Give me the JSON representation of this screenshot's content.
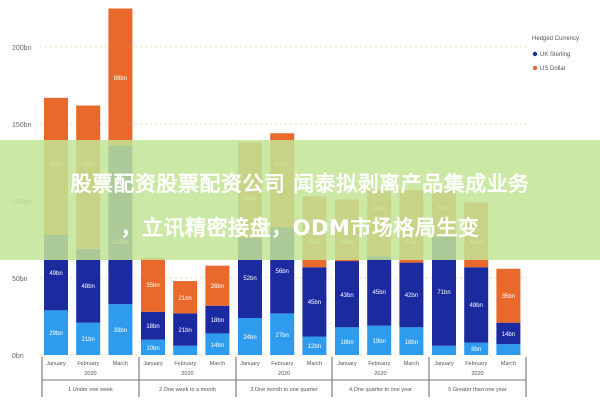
{
  "chart_data": {
    "type": "bar",
    "stacked": true,
    "title": "",
    "xlabel": "",
    "ylabel": "",
    "ylim": [
      0,
      225
    ],
    "y_ticks": [
      "0bn",
      "50bn",
      "100bn",
      "150bn",
      "200bn"
    ],
    "y_tick_values": [
      0,
      50,
      100,
      150,
      200
    ],
    "grid": true,
    "categories": [
      "January",
      "February",
      "March",
      "January",
      "February",
      "March",
      "January",
      "February",
      "March",
      "January",
      "February",
      "March",
      "January",
      "February",
      "March"
    ],
    "year_label": "2020",
    "groups": [
      "1.Under one week",
      "2.One week to a month",
      "3.One month to one quarter",
      "4.One quarter to one year",
      "5.Greater than one year"
    ],
    "legend": {
      "title": "Hedged Currency",
      "position": "right"
    },
    "series": [
      {
        "name": "",
        "color": "#2f9bef",
        "values": [
          29,
          21,
          33,
          10,
          6,
          14,
          24,
          27,
          12,
          18,
          19,
          18,
          6,
          8,
          7
        ]
      },
      {
        "name": "UK Sterling",
        "color": "#1b2a9e",
        "values": [
          49,
          48,
          103,
          18,
          21,
          18,
          52,
          56,
          45,
          43,
          45,
          42,
          71,
          49,
          14
        ]
      },
      {
        "name": "US Dollar",
        "color": "#e8692b",
        "values": [
          89,
          93,
          89,
          35,
          21,
          26,
          62,
          61,
          46,
          40,
          43,
          47,
          30,
          42,
          35
        ]
      }
    ]
  },
  "banner": {
    "line1": "股票配资股票配资公司 闻泰拟剥离产品集成业务",
    "line2": "，立讯精密接盘，ODM市场格局生变"
  }
}
